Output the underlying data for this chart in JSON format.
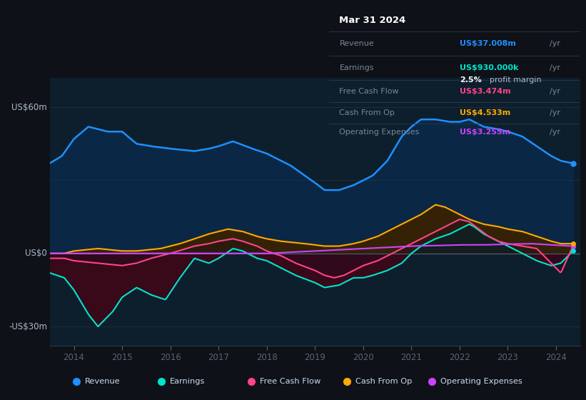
{
  "bg_color": "#0e1117",
  "plot_bg_color": "#0d1f2d",
  "ylabel_60": "US$60m",
  "ylabel_0": "US$0",
  "ylabel_neg30": "-US$30m",
  "revenue_color": "#1e90ff",
  "earnings_color": "#00e5cc",
  "fcf_color": "#ff4488",
  "cashfromop_color": "#ffaa00",
  "opex_color": "#cc44ff",
  "info_box": {
    "date": "Mar 31 2024",
    "revenue_label": "Revenue",
    "revenue_value": "US$37.008m",
    "revenue_unit": "/yr",
    "earnings_label": "Earnings",
    "earnings_value": "US$930.000k",
    "earnings_unit": "/yr",
    "margin_value": "2.5%",
    "margin_label": "profit margin",
    "fcf_label": "Free Cash Flow",
    "fcf_value": "US$3.474m",
    "fcf_unit": "/yr",
    "cashfromop_label": "Cash From Op",
    "cashfromop_value": "US$4.533m",
    "cashfromop_unit": "/yr",
    "opex_label": "Operating Expenses",
    "opex_value": "US$3.255m",
    "opex_unit": "/yr"
  },
  "legend": [
    {
      "label": "Revenue",
      "color": "#1e90ff"
    },
    {
      "label": "Earnings",
      "color": "#00e5cc"
    },
    {
      "label": "Free Cash Flow",
      "color": "#ff4488"
    },
    {
      "label": "Cash From Op",
      "color": "#ffaa00"
    },
    {
      "label": "Operating Expenses",
      "color": "#cc44ff"
    }
  ]
}
